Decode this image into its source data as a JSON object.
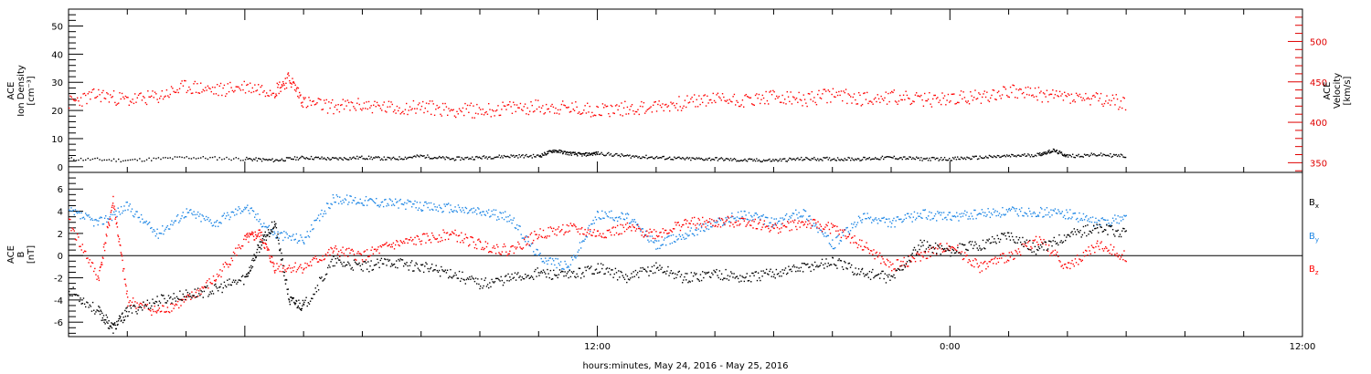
{
  "chart_data": [
    {
      "type": "scatter",
      "panel": "top",
      "ylabel_left": [
        "ACE",
        "Ion Density",
        "[cm⁻³]"
      ],
      "ylabel_right": [
        "ACE",
        "Velocity",
        "[km/s]"
      ],
      "ylim_left": [
        -2,
        56
      ],
      "ylim_right": [
        338,
        540
      ],
      "yticks_left": [
        0,
        10,
        20,
        30,
        40,
        50
      ],
      "yticks_right": [
        350,
        400,
        450,
        500
      ],
      "series": [
        {
          "axis": "left",
          "color": "#000000",
          "points": [
            [
              -6,
              3
            ],
            [
              -4,
              2.5
            ],
            [
              -2,
              3.5
            ],
            [
              0,
              3
            ],
            [
              1,
              2.5
            ],
            [
              2,
              3.5
            ],
            [
              3,
              3
            ],
            [
              4,
              3.5
            ],
            [
              5,
              3
            ],
            [
              6,
              4
            ],
            [
              7,
              3
            ],
            [
              8,
              3.5
            ],
            [
              9,
              4
            ],
            [
              10,
              4
            ],
            [
              10.5,
              6
            ],
            [
              11,
              5
            ],
            [
              11.5,
              4.5
            ],
            [
              12,
              5
            ],
            [
              13,
              4
            ],
            [
              14,
              3.5
            ],
            [
              15,
              3
            ],
            [
              16,
              3
            ],
            [
              17,
              2.5
            ],
            [
              18,
              2.5
            ],
            [
              19,
              3
            ],
            [
              20,
              3
            ],
            [
              21,
              3
            ],
            [
              22,
              3.5
            ],
            [
              23,
              3
            ],
            [
              24,
              3
            ],
            [
              25,
              3.5
            ],
            [
              26,
              4
            ],
            [
              27,
              4.5
            ],
            [
              27.5,
              6
            ],
            [
              28,
              4
            ],
            [
              29,
              4.5
            ],
            [
              30,
              4
            ]
          ]
        },
        {
          "axis": "right",
          "color": "#ff0000",
          "points": [
            [
              -6,
              425
            ],
            [
              -5,
              435
            ],
            [
              -4,
              428
            ],
            [
              -3,
              432
            ],
            [
              -2,
              445
            ],
            [
              -1,
              440
            ],
            [
              0,
              445
            ],
            [
              1,
              440
            ],
            [
              1.5,
              455
            ],
            [
              2,
              425
            ],
            [
              3,
              420
            ],
            [
              4,
              422
            ],
            [
              5,
              418
            ],
            [
              6,
              420
            ],
            [
              7,
              416
            ],
            [
              8,
              415
            ],
            [
              9,
              418
            ],
            [
              10,
              420
            ],
            [
              11,
              418
            ],
            [
              12,
              416
            ],
            [
              13,
              418
            ],
            [
              14,
              420
            ],
            [
              15,
              425
            ],
            [
              16,
              430
            ],
            [
              17,
              428
            ],
            [
              18,
              432
            ],
            [
              19,
              428
            ],
            [
              20,
              435
            ],
            [
              21,
              430
            ],
            [
              22,
              432
            ],
            [
              23,
              428
            ],
            [
              24,
              430
            ],
            [
              25,
              432
            ],
            [
              26,
              440
            ],
            [
              27,
              435
            ],
            [
              28,
              432
            ],
            [
              29,
              428
            ],
            [
              30,
              425
            ]
          ]
        }
      ]
    },
    {
      "type": "scatter",
      "panel": "bottom",
      "ylabel": [
        "ACE",
        "B",
        "[nT]"
      ],
      "ylim": [
        -7.3,
        7.5
      ],
      "yticks": [
        -6,
        -4,
        -2,
        0,
        2,
        4,
        6
      ],
      "legend_position": "right",
      "series": [
        {
          "name": "Bx",
          "label_main": "B",
          "label_sub": "x",
          "color": "#000000",
          "points": [
            [
              -6,
              -3
            ],
            [
              -5,
              -5
            ],
            [
              -4.5,
              -6.5
            ],
            [
              -4,
              -5
            ],
            [
              -3,
              -4
            ],
            [
              -2,
              -3.5
            ],
            [
              -1,
              -3
            ],
            [
              0,
              -2
            ],
            [
              0.5,
              1
            ],
            [
              1,
              3
            ],
            [
              1.5,
              -4
            ],
            [
              2,
              -4.5
            ],
            [
              3,
              -0.5
            ],
            [
              4,
              -1
            ],
            [
              5,
              -0.5
            ],
            [
              6,
              -1
            ],
            [
              7,
              -1.5
            ],
            [
              8,
              -2.5
            ],
            [
              9,
              -2
            ],
            [
              10,
              -1.5
            ],
            [
              11,
              -1.8
            ],
            [
              12,
              -1
            ],
            [
              13,
              -2
            ],
            [
              14,
              -1
            ],
            [
              15,
              -2
            ],
            [
              16,
              -1.5
            ],
            [
              17,
              -2
            ],
            [
              18,
              -1.5
            ],
            [
              19,
              -1
            ],
            [
              20,
              -0.5
            ],
            [
              21,
              -1.5
            ],
            [
              22,
              -2
            ],
            [
              23,
              1
            ],
            [
              24,
              0.5
            ],
            [
              25,
              1
            ],
            [
              26,
              2
            ],
            [
              27,
              0.5
            ],
            [
              28,
              2
            ],
            [
              29,
              2.5
            ],
            [
              30,
              2
            ]
          ]
        },
        {
          "name": "By",
          "label_main": "B",
          "label_sub": "y",
          "color": "#1f87e5",
          "points": [
            [
              -6,
              4
            ],
            [
              -5,
              3
            ],
            [
              -4,
              4.5
            ],
            [
              -3,
              2
            ],
            [
              -2,
              4
            ],
            [
              -1,
              3
            ],
            [
              0,
              4.5
            ],
            [
              1,
              2
            ],
            [
              2,
              1.5
            ],
            [
              3,
              5.2
            ],
            [
              4,
              5
            ],
            [
              5,
              4.8
            ],
            [
              6,
              4.5
            ],
            [
              7,
              4.3
            ],
            [
              8,
              4
            ],
            [
              9,
              3.5
            ],
            [
              10,
              0
            ],
            [
              11,
              -1
            ],
            [
              12,
              3.8
            ],
            [
              13,
              3.5
            ],
            [
              14,
              1
            ],
            [
              15,
              2
            ],
            [
              16,
              3
            ],
            [
              17,
              3.8
            ],
            [
              18,
              3
            ],
            [
              19,
              4
            ],
            [
              20,
              1
            ],
            [
              21,
              3.5
            ],
            [
              22,
              3
            ],
            [
              23,
              3.8
            ],
            [
              24,
              3.5
            ],
            [
              25,
              3.8
            ],
            [
              26,
              4
            ],
            [
              27,
              4
            ],
            [
              28,
              3.8
            ],
            [
              29,
              3
            ],
            [
              30,
              3.5
            ]
          ]
        },
        {
          "name": "Bz",
          "label_main": "B",
          "label_sub": "z",
          "color": "#ff0000",
          "points": [
            [
              -6,
              3
            ],
            [
              -5,
              -2
            ],
            [
              -4.5,
              5
            ],
            [
              -4,
              -4
            ],
            [
              -3,
              -5
            ],
            [
              -2,
              -4
            ],
            [
              -1,
              -2
            ],
            [
              0,
              1.5
            ],
            [
              0.5,
              2
            ],
            [
              1,
              -1
            ],
            [
              2,
              -1
            ],
            [
              3,
              0.5
            ],
            [
              4,
              0
            ],
            [
              5,
              1
            ],
            [
              6,
              1.5
            ],
            [
              7,
              2
            ],
            [
              8,
              1
            ],
            [
              9,
              0.5
            ],
            [
              10,
              2
            ],
            [
              11,
              2.5
            ],
            [
              12,
              2
            ],
            [
              13,
              2.5
            ],
            [
              14,
              2
            ],
            [
              15,
              3
            ],
            [
              16,
              3
            ],
            [
              17,
              3.2
            ],
            [
              18,
              2.5
            ],
            [
              19,
              3
            ],
            [
              20,
              2.5
            ],
            [
              21,
              1
            ],
            [
              22,
              -1
            ],
            [
              23,
              0
            ],
            [
              24,
              1
            ],
            [
              25,
              -1
            ],
            [
              26,
              0
            ],
            [
              27,
              1.5
            ],
            [
              28,
              -1
            ],
            [
              29,
              1
            ],
            [
              30,
              0
            ]
          ]
        }
      ]
    }
  ],
  "x_axis": {
    "xlim_hours": [
      -6,
      36
    ],
    "tick_labels": [
      {
        "hour": 12,
        "label": "12:00"
      },
      {
        "hour": 24,
        "label": "0:00"
      },
      {
        "hour": 36,
        "label": "12:00"
      }
    ],
    "xlabel": "hours:minutes, May 24, 2016 - May 25, 2016"
  }
}
